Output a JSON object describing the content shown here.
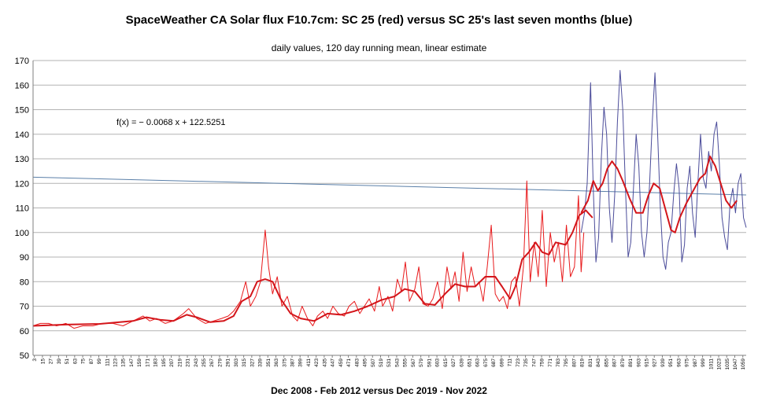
{
  "chart_data": {
    "type": "line",
    "title": "SpaceWeather CA Solar flux F10.7cm: SC 25 (red) versus SC 25's last seven months (blue)",
    "subtitle": "daily values, 120 day running mean, linear estimate",
    "xlabel": "Dec 2008 - Feb 2012 versus Dec 2019 - Nov 2022",
    "ylabel": "",
    "ylim": [
      50,
      170
    ],
    "yticks": [
      50,
      60,
      70,
      80,
      90,
      100,
      110,
      120,
      130,
      140,
      150,
      160,
      170
    ],
    "xlim": [
      1,
      1064
    ],
    "xtick_start": 3,
    "xtick_step": 12,
    "grid": "horizontal",
    "trend_equation": "f(x) = − 0.0068 x + 122.5251",
    "trend": {
      "slope": -0.0068,
      "intercept": 122.5251
    },
    "series": [
      {
        "color": "#e8191b",
        "points": [
          [
            1,
            62
          ],
          [
            12,
            63
          ],
          [
            24,
            63
          ],
          [
            36,
            62
          ],
          [
            50,
            63
          ],
          [
            62,
            61
          ],
          [
            75,
            62
          ],
          [
            90,
            62
          ],
          [
            105,
            63
          ],
          [
            120,
            63
          ],
          [
            135,
            62
          ],
          [
            150,
            64
          ],
          [
            165,
            66
          ],
          [
            175,
            64
          ],
          [
            185,
            65
          ],
          [
            198,
            63
          ],
          [
            210,
            64
          ],
          [
            225,
            67
          ],
          [
            233,
            69
          ],
          [
            245,
            65
          ],
          [
            258,
            63
          ],
          [
            270,
            64
          ],
          [
            282,
            65
          ],
          [
            292,
            66
          ],
          [
            300,
            68
          ],
          [
            310,
            72
          ],
          [
            318,
            80
          ],
          [
            325,
            70
          ],
          [
            333,
            74
          ],
          [
            340,
            80
          ],
          [
            347,
            101
          ],
          [
            352,
            86
          ],
          [
            358,
            75
          ],
          [
            365,
            82
          ],
          [
            372,
            70
          ],
          [
            380,
            74
          ],
          [
            388,
            66
          ],
          [
            395,
            64
          ],
          [
            402,
            70
          ],
          [
            410,
            65
          ],
          [
            418,
            62
          ],
          [
            425,
            66
          ],
          [
            433,
            68
          ],
          [
            440,
            65
          ],
          [
            448,
            70
          ],
          [
            456,
            67
          ],
          [
            465,
            66
          ],
          [
            472,
            70
          ],
          [
            480,
            72
          ],
          [
            488,
            67
          ],
          [
            495,
            70
          ],
          [
            502,
            73
          ],
          [
            510,
            68
          ],
          [
            517,
            78
          ],
          [
            522,
            70
          ],
          [
            530,
            74
          ],
          [
            537,
            68
          ],
          [
            544,
            81
          ],
          [
            550,
            76
          ],
          [
            556,
            88
          ],
          [
            562,
            72
          ],
          [
            570,
            77
          ],
          [
            576,
            86
          ],
          [
            582,
            71
          ],
          [
            590,
            70
          ],
          [
            597,
            73
          ],
          [
            604,
            80
          ],
          [
            611,
            69
          ],
          [
            618,
            86
          ],
          [
            624,
            77
          ],
          [
            630,
            84
          ],
          [
            636,
            72
          ],
          [
            642,
            92
          ],
          [
            648,
            76
          ],
          [
            654,
            86
          ],
          [
            660,
            78
          ],
          [
            666,
            80
          ],
          [
            672,
            72
          ],
          [
            678,
            86
          ],
          [
            684,
            103
          ],
          [
            690,
            75
          ],
          [
            696,
            72
          ],
          [
            702,
            74
          ],
          [
            708,
            69
          ],
          [
            714,
            80
          ],
          [
            720,
            82
          ],
          [
            726,
            70
          ],
          [
            732,
            86
          ],
          [
            737,
            121
          ],
          [
            742,
            80
          ],
          [
            748,
            96
          ],
          [
            754,
            82
          ],
          [
            760,
            109
          ],
          [
            766,
            78
          ],
          [
            772,
            100
          ],
          [
            778,
            88
          ],
          [
            784,
            96
          ],
          [
            790,
            80
          ],
          [
            796,
            103
          ],
          [
            802,
            82
          ],
          [
            808,
            86
          ],
          [
            814,
            115
          ],
          [
            818,
            84
          ],
          [
            822,
            100
          ]
        ],
        "mean": [
          [
            1,
            62
          ],
          [
            50,
            62.5
          ],
          [
            100,
            62.8
          ],
          [
            150,
            64
          ],
          [
            170,
            65.5
          ],
          [
            190,
            64.5
          ],
          [
            210,
            64
          ],
          [
            230,
            66.5
          ],
          [
            245,
            65.5
          ],
          [
            265,
            63.5
          ],
          [
            285,
            64
          ],
          [
            300,
            66
          ],
          [
            312,
            72
          ],
          [
            325,
            74
          ],
          [
            335,
            80
          ],
          [
            347,
            81
          ],
          [
            358,
            80
          ],
          [
            370,
            73
          ],
          [
            385,
            67
          ],
          [
            400,
            65
          ],
          [
            420,
            64
          ],
          [
            440,
            67
          ],
          [
            460,
            66.5
          ],
          [
            480,
            68
          ],
          [
            500,
            70
          ],
          [
            520,
            72.5
          ],
          [
            540,
            74
          ],
          [
            555,
            77
          ],
          [
            570,
            76
          ],
          [
            585,
            71
          ],
          [
            600,
            70.5
          ],
          [
            615,
            75
          ],
          [
            630,
            79
          ],
          [
            645,
            78
          ],
          [
            660,
            78
          ],
          [
            675,
            82
          ],
          [
            690,
            82
          ],
          [
            700,
            78
          ],
          [
            712,
            73
          ],
          [
            720,
            78
          ],
          [
            730,
            89
          ],
          [
            740,
            92
          ],
          [
            750,
            96
          ],
          [
            760,
            92
          ],
          [
            770,
            91
          ],
          [
            780,
            96
          ],
          [
            795,
            95
          ],
          [
            805,
            100
          ],
          [
            815,
            107
          ],
          [
            825,
            109
          ],
          [
            835,
            106
          ]
        ]
      },
      {
        "color": "#4b4c9a",
        "points": [
          [
            818,
            100
          ],
          [
            823,
            108
          ],
          [
            827,
            120
          ],
          [
            832,
            161
          ],
          [
            836,
            118
          ],
          [
            840,
            88
          ],
          [
            844,
            98
          ],
          [
            848,
            130
          ],
          [
            852,
            151
          ],
          [
            856,
            140
          ],
          [
            860,
            110
          ],
          [
            864,
            96
          ],
          [
            868,
            115
          ],
          [
            872,
            145
          ],
          [
            876,
            166
          ],
          [
            880,
            150
          ],
          [
            884,
            118
          ],
          [
            888,
            90
          ],
          [
            892,
            96
          ],
          [
            896,
            118
          ],
          [
            900,
            140
          ],
          [
            904,
            127
          ],
          [
            908,
            100
          ],
          [
            912,
            90
          ],
          [
            916,
            100
          ],
          [
            920,
            120
          ],
          [
            924,
            145
          ],
          [
            928,
            165
          ],
          [
            932,
            140
          ],
          [
            936,
            110
          ],
          [
            940,
            90
          ],
          [
            944,
            85
          ],
          [
            948,
            96
          ],
          [
            952,
            100
          ],
          [
            956,
            116
          ],
          [
            960,
            128
          ],
          [
            964,
            118
          ],
          [
            968,
            88
          ],
          [
            972,
            95
          ],
          [
            976,
            118
          ],
          [
            980,
            127
          ],
          [
            984,
            108
          ],
          [
            988,
            98
          ],
          [
            992,
            120
          ],
          [
            996,
            140
          ],
          [
            1000,
            122
          ],
          [
            1004,
            118
          ],
          [
            1008,
            133
          ],
          [
            1012,
            125
          ],
          [
            1016,
            140
          ],
          [
            1020,
            145
          ],
          [
            1024,
            128
          ],
          [
            1028,
            106
          ],
          [
            1032,
            98
          ],
          [
            1036,
            93
          ],
          [
            1040,
            112
          ],
          [
            1044,
            118
          ],
          [
            1048,
            108
          ],
          [
            1052,
            120
          ],
          [
            1056,
            124
          ],
          [
            1060,
            106
          ],
          [
            1064,
            102
          ]
        ],
        "mean": [
          [
            818,
            108
          ],
          [
            828,
            113
          ],
          [
            836,
            121
          ],
          [
            843,
            117
          ],
          [
            850,
            120
          ],
          [
            857,
            126
          ],
          [
            864,
            129
          ],
          [
            872,
            126
          ],
          [
            880,
            121
          ],
          [
            890,
            114
          ],
          [
            900,
            108
          ],
          [
            910,
            108
          ],
          [
            918,
            115
          ],
          [
            926,
            120
          ],
          [
            935,
            118
          ],
          [
            945,
            108
          ],
          [
            952,
            101
          ],
          [
            958,
            100
          ],
          [
            965,
            106
          ],
          [
            975,
            112
          ],
          [
            985,
            117
          ],
          [
            995,
            122
          ],
          [
            1003,
            124
          ],
          [
            1010,
            131
          ],
          [
            1018,
            127
          ],
          [
            1026,
            120
          ],
          [
            1034,
            113
          ],
          [
            1042,
            110
          ],
          [
            1050,
            113
          ]
        ]
      }
    ]
  }
}
